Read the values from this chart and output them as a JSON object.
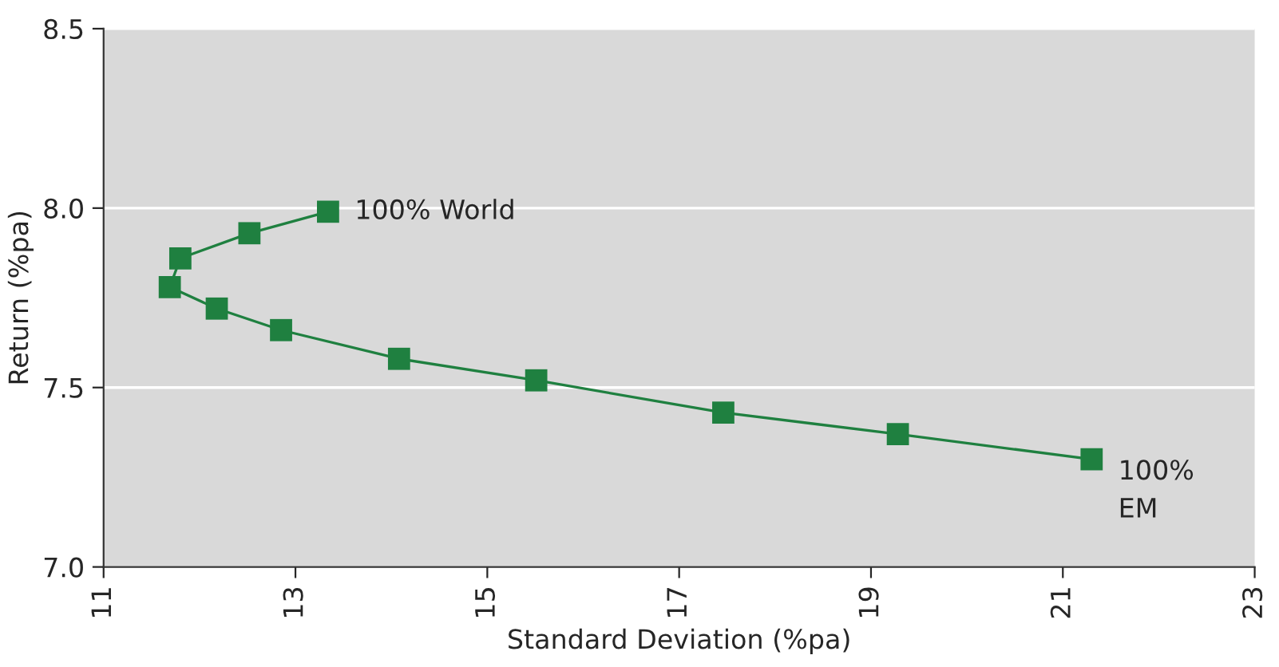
{
  "chart_data": {
    "type": "line",
    "xlabel": "Standard Deviation (%pa)",
    "ylabel": "Return (%pa)",
    "x": [
      13.34,
      12.52,
      11.8,
      11.69,
      12.18,
      12.85,
      14.08,
      15.51,
      17.46,
      19.28,
      21.3
    ],
    "series": [
      {
        "color": "#1f8040",
        "values": [
          7.99,
          7.93,
          7.86,
          7.78,
          7.72,
          7.66,
          7.58,
          7.52,
          7.43,
          7.37,
          7.3
        ]
      }
    ],
    "xlim": [
      11,
      23
    ],
    "xticks": [
      11,
      13,
      15,
      17,
      19,
      21,
      23
    ],
    "ylim": [
      7.0,
      8.5
    ],
    "yticks": [
      {
        "value": 7.0,
        "label": "7.0"
      },
      {
        "value": 7.5,
        "label": "7.5"
      },
      {
        "value": 8.0,
        "label": "8.0"
      },
      {
        "value": 8.5,
        "label": "8.5"
      }
    ],
    "grid": "y",
    "marker": "square",
    "line_style": "solid",
    "annotations": [
      {
        "text": "100% World",
        "x": 13.34,
        "y": 7.99
      },
      {
        "text": "100%\nEM",
        "x": 21.3,
        "y": 7.3
      }
    ]
  }
}
